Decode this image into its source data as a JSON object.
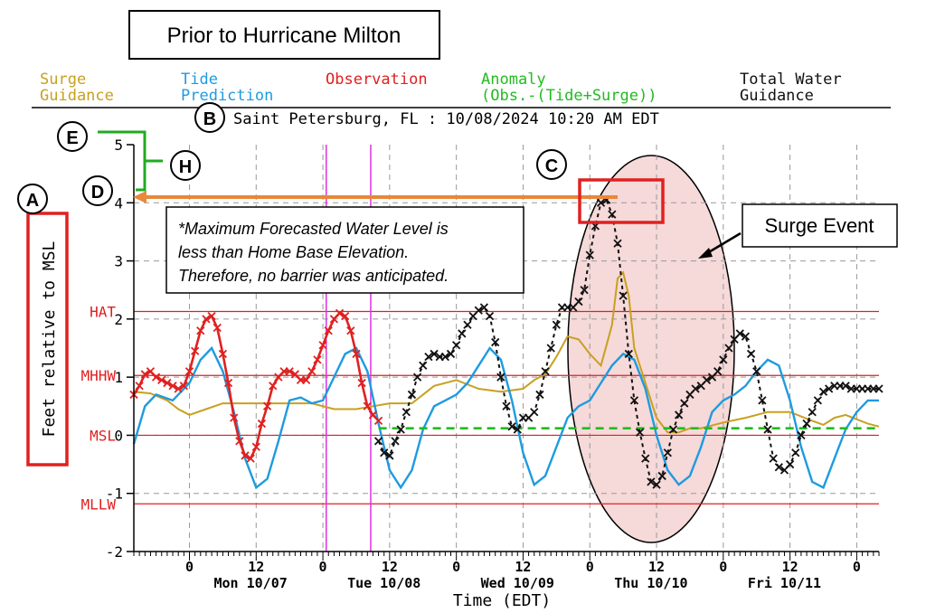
{
  "chart_data": {
    "type": "line",
    "title": "Prior to Hurricane Milton",
    "subtitle": "Saint Petersburg, FL : 10/08/2024 10:20 AM EDT",
    "xlabel": "Time (EDT)",
    "ylabel": "Feet relative to MSL",
    "ylim": [
      -2,
      5
    ],
    "xlim": [
      -10,
      124
    ],
    "grid": true,
    "legend": [
      {
        "label_line1": "Surge",
        "label_line2": "Guidance",
        "color": "#c8a020"
      },
      {
        "label_line1": "Tide",
        "label_line2": "Prediction",
        "color": "#1e9be0"
      },
      {
        "label_line1": "Observation",
        "label_line2": "",
        "color": "#e02020"
      },
      {
        "label_line1": "Anomaly",
        "label_line2": "(Obs.-(Tide+Surge))",
        "color": "#22bb22"
      },
      {
        "label_line1": "Total Water",
        "label_line2": "Guidance",
        "color": "#111111"
      }
    ],
    "y_ticks": [
      "-2",
      "-1",
      "0",
      "1",
      "2",
      "3",
      "4",
      "5"
    ],
    "x_ticks_hour": [
      {
        "label": "0",
        "x": 0
      },
      {
        "label": "12",
        "x": 12
      },
      {
        "label": "0",
        "x": 24
      },
      {
        "label": "12",
        "x": 36
      },
      {
        "label": "0",
        "x": 48
      },
      {
        "label": "12",
        "x": 60
      },
      {
        "label": "0",
        "x": 72
      },
      {
        "label": "12",
        "x": 84
      },
      {
        "label": "0",
        "x": 96
      },
      {
        "label": "12",
        "x": 108
      },
      {
        "label": "0",
        "x": 120
      }
    ],
    "x_ticks_day": [
      {
        "label": "Mon 10/07",
        "x": 11
      },
      {
        "label": "Tue 10/08",
        "x": 35
      },
      {
        "label": "Wed 10/09",
        "x": 59
      },
      {
        "label": "Thu 10/10",
        "x": 83
      },
      {
        "label": "Fri 10/11",
        "x": 107
      }
    ],
    "datum_lines": [
      {
        "label": "HAT",
        "y": 2.13
      },
      {
        "label": "MHHW",
        "y": 1.03
      },
      {
        "label": "MSL",
        "y": 0
      },
      {
        "label": "MLLW",
        "y": -1.18
      }
    ],
    "vertical_markers": [
      24.6,
      32.6
    ],
    "series": [
      {
        "name": "Surge Guidance",
        "color": "#c8a020",
        "x": [
          -10,
          -7,
          -4,
          -2,
          0,
          3,
          6,
          10,
          14,
          18,
          22,
          26,
          30,
          33,
          36,
          40,
          44,
          48,
          52,
          56,
          60,
          62,
          64,
          66,
          68,
          70,
          72,
          74,
          75,
          76,
          77,
          78,
          79,
          80,
          82,
          84,
          86,
          88,
          90,
          92,
          96,
          100,
          104,
          108,
          112,
          114,
          116,
          118,
          122,
          124
        ],
        "y": [
          0.75,
          0.72,
          0.6,
          0.45,
          0.35,
          0.45,
          0.55,
          0.55,
          0.55,
          0.55,
          0.55,
          0.45,
          0.45,
          0.5,
          0.55,
          0.55,
          0.85,
          0.95,
          0.8,
          0.75,
          0.8,
          0.95,
          1.05,
          1.35,
          1.7,
          1.65,
          1.4,
          1.2,
          1.55,
          1.9,
          2.7,
          2.8,
          2.4,
          1.5,
          0.9,
          0.3,
          0.05,
          0.05,
          0.12,
          0.12,
          0.22,
          0.3,
          0.4,
          0.4,
          0.25,
          0.18,
          0.3,
          0.35,
          0.2,
          0.15
        ]
      },
      {
        "name": "Tide Prediction",
        "color": "#1e9be0",
        "x": [
          -10,
          -8,
          -6,
          -3,
          0,
          2,
          4,
          6,
          8,
          10,
          12,
          14,
          16,
          18,
          20,
          22,
          24,
          26,
          28,
          30,
          32,
          34,
          36,
          38,
          40,
          42,
          44,
          46,
          48,
          50,
          52,
          54,
          56,
          58,
          60,
          62,
          64,
          66,
          68,
          70,
          72,
          74,
          76,
          78,
          80,
          82,
          84,
          86,
          88,
          90,
          92,
          94,
          96,
          98,
          100,
          102,
          104,
          106,
          108,
          110,
          112,
          114,
          116,
          118,
          120,
          122,
          124
        ],
        "y": [
          -0.15,
          0.5,
          0.7,
          0.6,
          0.9,
          1.3,
          1.5,
          1.1,
          0.4,
          -0.4,
          -0.9,
          -0.75,
          -0.1,
          0.6,
          0.65,
          0.55,
          0.6,
          1.0,
          1.4,
          1.5,
          1.1,
          0.2,
          -0.6,
          -0.9,
          -0.6,
          0.1,
          0.5,
          0.6,
          0.7,
          0.9,
          1.2,
          1.5,
          1.3,
          0.6,
          -0.3,
          -0.85,
          -0.7,
          -0.2,
          0.3,
          0.5,
          0.6,
          0.9,
          1.2,
          1.4,
          1.3,
          0.8,
          0.0,
          -0.6,
          -0.85,
          -0.7,
          -0.2,
          0.4,
          0.6,
          0.7,
          0.85,
          1.1,
          1.3,
          1.2,
          0.6,
          -0.2,
          -0.8,
          -0.9,
          -0.4,
          0.1,
          0.4,
          0.6,
          0.6
        ]
      },
      {
        "name": "Observation",
        "color": "#e02020",
        "x": [
          -10,
          -9,
          -8,
          -7,
          -6,
          -5,
          -4,
          -3,
          -2,
          -1,
          0,
          1,
          2,
          3,
          4,
          5,
          6,
          7,
          8,
          9,
          10,
          11,
          12,
          13,
          14,
          15,
          16,
          17,
          18,
          19,
          20,
          21,
          22,
          23,
          24,
          25,
          26,
          27,
          28,
          29,
          30,
          31,
          32,
          33,
          34
        ],
        "y": [
          0.7,
          0.85,
          1.05,
          1.1,
          1.0,
          0.95,
          0.9,
          0.85,
          0.8,
          0.85,
          1.1,
          1.45,
          1.8,
          2.0,
          2.05,
          1.85,
          1.4,
          0.9,
          0.3,
          -0.1,
          -0.35,
          -0.4,
          -0.2,
          0.2,
          0.5,
          0.85,
          1.0,
          1.1,
          1.1,
          1.05,
          0.95,
          0.95,
          1.1,
          1.3,
          1.55,
          1.8,
          2.0,
          2.1,
          2.05,
          1.8,
          1.4,
          0.9,
          0.5,
          0.35,
          0.25
        ]
      },
      {
        "name": "Total Water Guidance",
        "color": "#111111",
        "x": [
          34,
          35,
          36,
          37,
          38,
          39,
          40,
          41,
          42,
          43,
          44,
          45,
          46,
          47,
          48,
          49,
          50,
          51,
          52,
          53,
          54,
          55,
          56,
          57,
          58,
          59,
          60,
          61,
          62,
          63,
          64,
          65,
          66,
          67,
          68,
          69,
          70,
          71,
          72,
          73,
          74,
          75,
          76,
          77,
          78,
          79,
          80,
          81,
          82,
          83,
          84,
          85,
          86,
          87,
          88,
          89,
          90,
          91,
          92,
          93,
          94,
          95,
          96,
          97,
          98,
          99,
          100,
          101,
          102,
          103,
          104,
          105,
          106,
          107,
          108,
          109,
          110,
          111,
          112,
          113,
          114,
          115,
          116,
          117,
          118,
          119,
          120,
          121,
          122,
          123,
          124
        ],
        "y": [
          -0.1,
          -0.3,
          -0.35,
          -0.1,
          0.1,
          0.4,
          0.7,
          1.0,
          1.2,
          1.35,
          1.4,
          1.35,
          1.35,
          1.4,
          1.55,
          1.75,
          1.9,
          2.05,
          2.15,
          2.2,
          2.05,
          1.6,
          1.0,
          0.5,
          0.15,
          0.1,
          0.3,
          0.3,
          0.4,
          0.7,
          1.1,
          1.5,
          1.9,
          2.2,
          2.2,
          2.2,
          2.3,
          2.5,
          3.1,
          3.6,
          4.0,
          4.05,
          3.8,
          3.3,
          2.4,
          1.4,
          0.6,
          0.05,
          -0.4,
          -0.8,
          -0.85,
          -0.7,
          -0.3,
          0.1,
          0.35,
          0.55,
          0.7,
          0.8,
          0.85,
          0.95,
          1.0,
          1.1,
          1.3,
          1.5,
          1.65,
          1.75,
          1.7,
          1.4,
          1.1,
          0.6,
          0.1,
          -0.4,
          -0.55,
          -0.6,
          -0.5,
          -0.3,
          0.0,
          0.2,
          0.4,
          0.6,
          0.75,
          0.8,
          0.85,
          0.85,
          0.85,
          0.8,
          0.8,
          0.8,
          0.8,
          0.8,
          0.8
        ]
      },
      {
        "name": "Anomaly",
        "color": "#22bb22",
        "x": [
          34,
          124
        ],
        "y": [
          0.12,
          0.12
        ]
      }
    ]
  },
  "annotations": {
    "markers": [
      "A",
      "B",
      "C",
      "D",
      "E",
      "H"
    ],
    "note_lines": [
      "*Maximum Forecasted Water Level is",
      "less than Home Base Elevation.",
      "Therefore, no barrier was anticipated."
    ],
    "surge_label": "Surge Event"
  }
}
